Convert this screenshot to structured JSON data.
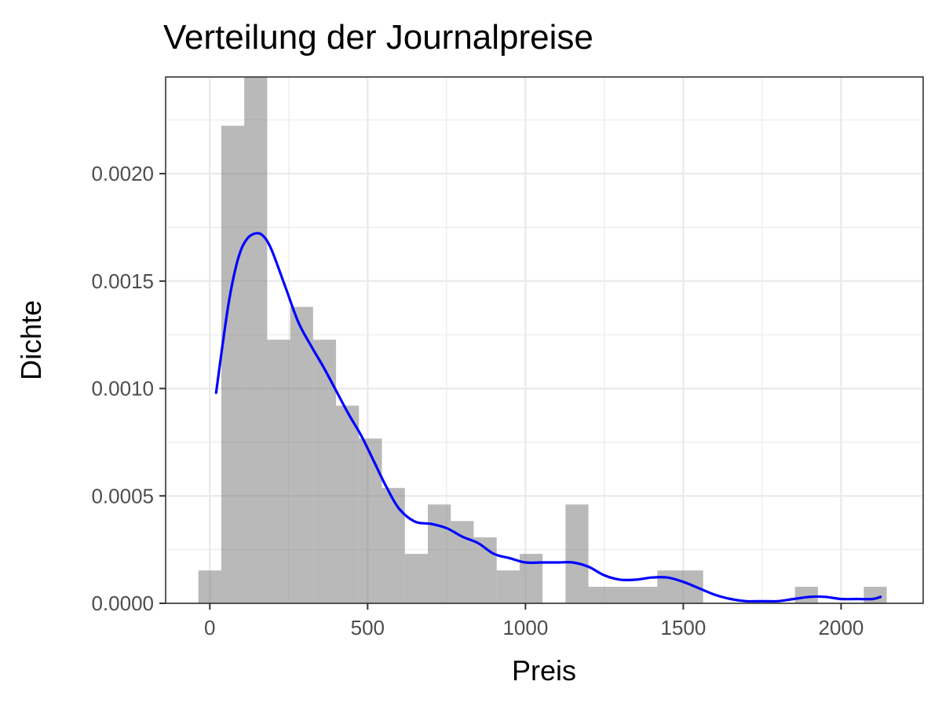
{
  "chart_data": {
    "type": "histogram",
    "title": "Verteilung der Journalpreise",
    "xlabel": "Preis",
    "ylabel": "Dichte",
    "xlim": [
      -140,
      2260
    ],
    "ylim": [
      0,
      0.00245
    ],
    "x_ticks": [
      0,
      500,
      1000,
      1500,
      2000
    ],
    "x_tick_labels": [
      "0",
      "500",
      "1000",
      "1500",
      "2000"
    ],
    "x_minor_ticks": [
      250,
      750,
      1250,
      1750
    ],
    "y_ticks": [
      0,
      0.0005,
      0.001,
      0.0015,
      0.002
    ],
    "y_tick_labels": [
      "0.0000",
      "0.0005",
      "0.0010",
      "0.0015",
      "0.0020"
    ],
    "y_minor_ticks": [
      0.00025,
      0.00075,
      0.00125,
      0.00175,
      0.00225
    ],
    "grid": true,
    "legend": "none",
    "bin_width": 72.7,
    "histogram": {
      "bin_centers": [
        0,
        72.7,
        145.4,
        218.1,
        290.8,
        363.5,
        436.2,
        508.9,
        581.6,
        654.3,
        727,
        799.7,
        872.4,
        945.1,
        1017.8,
        1090.5,
        1163.2,
        1235.9,
        1308.6,
        1381.3,
        1454,
        1526.7,
        1599.4,
        1672.1,
        1744.8,
        1817.5,
        1890.2,
        1962.9,
        2035.6,
        2108.3
      ],
      "density": [
        0.000153,
        0.002223,
        0.002453,
        0.001227,
        0.00138,
        0.001227,
        0.00092,
        0.000767,
        0.000537,
        0.00023,
        0.00046,
        0.000383,
        0.000307,
        0.000153,
        0.00023,
        0,
        0.00046,
        7.7e-05,
        7.7e-05,
        7.7e-05,
        0.000153,
        0.000153,
        0,
        0,
        0,
        0,
        7.7e-05,
        0,
        0,
        7.7e-05
      ]
    },
    "density_curve": {
      "x": [
        20,
        40,
        60,
        80,
        100,
        120,
        140,
        160,
        180,
        200,
        240,
        280,
        320,
        360,
        400,
        440,
        480,
        520,
        560,
        600,
        650,
        700,
        750,
        800,
        850,
        900,
        950,
        1000,
        1050,
        1100,
        1150,
        1200,
        1250,
        1300,
        1350,
        1400,
        1450,
        1500,
        1550,
        1600,
        1650,
        1700,
        1750,
        1800,
        1850,
        1900,
        1950,
        2000,
        2050,
        2100,
        2125
      ],
      "y": [
        0.00098,
        0.0012,
        0.0014,
        0.00155,
        0.00165,
        0.0017,
        0.00172,
        0.00172,
        0.00169,
        0.00163,
        0.00147,
        0.00131,
        0.0012,
        0.0011,
        0.00099,
        0.00088,
        0.00078,
        0.00066,
        0.00054,
        0.00044,
        0.00038,
        0.00037,
        0.00035,
        0.00031,
        0.00028,
        0.00023,
        0.00021,
        0.00019,
        0.00019,
        0.00019,
        0.00019,
        0.00017,
        0.00013,
        0.00011,
        0.00011,
        0.00012,
        0.00012,
        0.0001,
        7e-05,
        4e-05,
        2e-05,
        1e-05,
        1e-05,
        1e-05,
        2e-05,
        3e-05,
        3e-05,
        2e-05,
        2e-05,
        2e-05,
        3e-05
      ]
    },
    "colors": {
      "bars": "#7f7f7f",
      "density_line": "#0000ff",
      "background": "#ffffff",
      "grid": "#ebebeb",
      "border": "#333333"
    }
  }
}
